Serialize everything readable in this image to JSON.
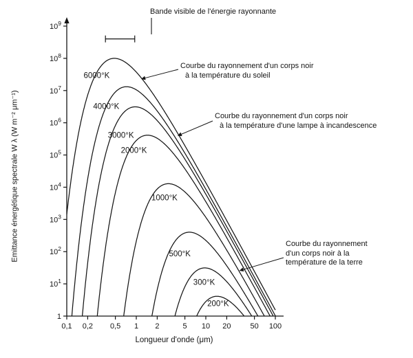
{
  "figure": {
    "background": "#ffffff",
    "ink": "#141414"
  },
  "chart_data": {
    "type": "line",
    "title": "",
    "xlabel": "Longueur d'onde (μm)",
    "ylabel": "Emittance énergétique spectrale W λ (W m⁻² μm⁻¹)",
    "x_scale": "log",
    "y_scale": "log",
    "xlim": [
      0.1,
      100
    ],
    "ylim": [
      1,
      1000000000
    ],
    "grid": false,
    "x_ticks": {
      "values": [
        0.1,
        0.2,
        0.5,
        1,
        2,
        5,
        10,
        20,
        50,
        100
      ],
      "labels": [
        "0,1",
        "0,2",
        "0,5",
        "1",
        "2",
        "5",
        "10",
        "20",
        "50",
        "100"
      ]
    },
    "y_ticks": {
      "values": [
        1,
        10,
        100,
        1000,
        10000,
        100000,
        1000000,
        10000000,
        100000000,
        1000000000
      ],
      "labels": [
        "1",
        "10^1",
        "10^2",
        "10^3",
        "10^4",
        "10^5",
        "10^6",
        "10^7",
        "10^8",
        "10^9"
      ]
    },
    "model": {
      "name": "planck_spectral_emittance",
      "c1_w_um4_m2": 374180000,
      "c2_um_k": 14388,
      "formula": "M(λ,T) = c1 / (λ^5 · (exp(c2/(λ·T)) − 1))"
    },
    "series": [
      {
        "name": "6000°K",
        "temperature_k": 6000,
        "label_pos": [
          0.175,
          30000000
        ],
        "peak": [
          0.483,
          100000000
        ],
        "points": [
          [
            0.1,
            1440
          ],
          [
            0.2,
            7240000
          ],
          [
            0.3,
            52000000
          ],
          [
            0.483,
            100000000
          ],
          [
            1,
            37400000
          ],
          [
            2,
            5040000
          ],
          [
            5,
            195000
          ],
          [
            10,
            13800
          ],
          [
            50,
            24.4
          ],
          [
            100,
            1.54
          ]
        ]
      },
      {
        "name": "4000°K",
        "temperature_k": 4000,
        "label_pos": [
          0.24,
          3300000
        ],
        "peak": [
          0.724,
          13200000
        ],
        "points": [
          [
            0.12,
            1.45
          ],
          [
            0.2,
            18000
          ],
          [
            0.3,
            950000
          ],
          [
            0.5,
            9000000
          ],
          [
            0.724,
            13200000
          ],
          [
            1,
            10500000
          ],
          [
            2,
            2320000
          ],
          [
            5,
            114000
          ],
          [
            10,
            8640
          ],
          [
            50,
            16.1
          ],
          [
            100,
            1.02
          ]
        ]
      },
      {
        "name": "3000°K",
        "temperature_k": 3000,
        "label_pos": [
          0.39,
          420000
        ],
        "peak": [
          0.966,
          3130000
        ],
        "points": [
          [
            0.16,
            1.2
          ],
          [
            0.3,
            17500
          ],
          [
            0.5,
            820000
          ],
          [
            0.966,
            3130000
          ],
          [
            2,
            1170000
          ],
          [
            5,
            74400
          ],
          [
            10,
            6080
          ],
          [
            50,
            11.9
          ],
          [
            93,
            1.0
          ]
        ]
      },
      {
        "name": "2000°K",
        "temperature_k": 2000,
        "label_pos": [
          0.6,
          140000
        ],
        "peak": [
          1.449,
          412000
        ],
        "points": [
          [
            0.24,
            1.1
          ],
          [
            0.5,
            6700
          ],
          [
            1,
            281000
          ],
          [
            1.449,
            412000
          ],
          [
            2,
            329000
          ],
          [
            5,
            37200
          ],
          [
            10,
            3550
          ],
          [
            20,
            270
          ],
          [
            50,
            7.7
          ],
          [
            84,
            1.0
          ]
        ]
      },
      {
        "name": "1000°K",
        "temperature_k": 1000,
        "label_pos": [
          1.65,
          4800
        ],
        "peak": [
          2.898,
          12900
        ],
        "points": [
          [
            0.67,
            1.0
          ],
          [
            1,
            210
          ],
          [
            2,
            8790
          ],
          [
            2.898,
            12900
          ],
          [
            5,
            7140
          ],
          [
            10,
            1160
          ],
          [
            20,
            111
          ],
          [
            50,
            3.6
          ],
          [
            70,
            1.0
          ]
        ]
      },
      {
        "name": "500°K",
        "temperature_k": 500,
        "label_pos": [
          2.95,
          88
        ],
        "peak": [
          5.796,
          402
        ],
        "points": [
          [
            1.7,
            1.0
          ],
          [
            2.5,
            38
          ],
          [
            4,
            275
          ],
          [
            5.796,
            402
          ],
          [
            10,
            223
          ],
          [
            20,
            36
          ],
          [
            30,
            9.6
          ],
          [
            50,
            1.5
          ],
          [
            57,
            1.0
          ]
        ]
      },
      {
        "name": "300°K",
        "temperature_k": 300,
        "label_pos": [
          6.6,
          11.5
        ],
        "peak": [
          9.66,
          31.3
        ],
        "points": [
          [
            3.6,
            1.0
          ],
          [
            5,
            8.2
          ],
          [
            7,
            23.6
          ],
          [
            9.66,
            31.3
          ],
          [
            15,
            21
          ],
          [
            20,
            11.7
          ],
          [
            30,
            3.9
          ],
          [
            46,
            1.0
          ]
        ]
      },
      {
        "name": "200°K",
        "temperature_k": 200,
        "label_pos": [
          10.5,
          2.5
        ],
        "peak": [
          14.49,
          4.12
        ],
        "points": [
          [
            7.4,
            1.0
          ],
          [
            10,
            2.8
          ],
          [
            14.49,
            4.12
          ],
          [
            20,
            3.3
          ],
          [
            30,
            1.5
          ],
          [
            36,
            1.0
          ]
        ]
      }
    ],
    "annotations": {
      "visible_band": {
        "label": "Bande visible de l'énergie rayonnante",
        "band_microns": [
          0.36,
          0.95
        ],
        "band_level": 400000000
      },
      "sun": {
        "lines": [
          "Courbe du rayonnement d'un corps noir",
          "à la température du soleil"
        ],
        "target": [
          1.2,
          23000000
        ]
      },
      "lamp": {
        "lines": [
          "Courbe du rayonnement d'un corps noir",
          "à la température d'une lampe à incandescence"
        ],
        "target": [
          4.0,
          400000
        ]
      },
      "earth": {
        "lines": [
          "Courbe du rayonnement",
          "d'un corps noir à la",
          "température de la terre"
        ],
        "target": [
          31,
          26
        ]
      }
    }
  }
}
